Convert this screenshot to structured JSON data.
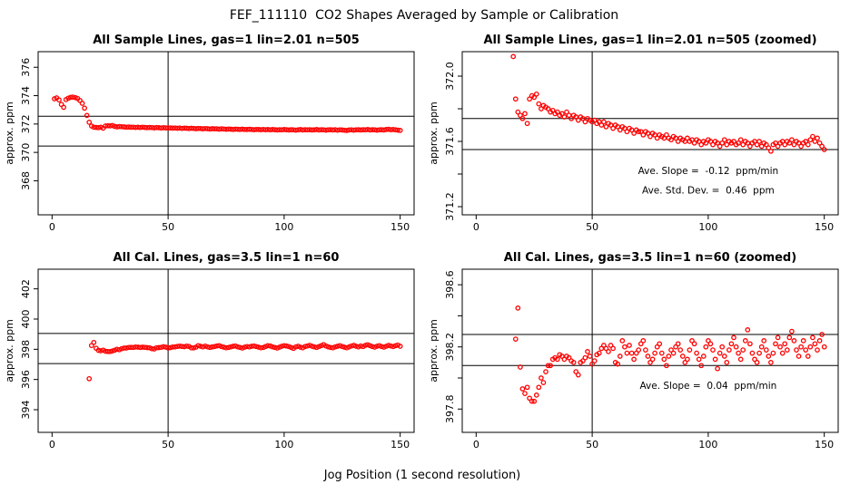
{
  "title": "FEF_111110  CO2 Shapes Averaged by Sample or Calibration",
  "xlabel": "Jog Position (1 second resolution)",
  "point_color": "#FF0000",
  "line_color": "#000000",
  "series": {
    "sample": {
      "x_start": 1,
      "y": [
        373.78,
        373.84,
        373.7,
        373.38,
        373.18,
        373.72,
        373.82,
        373.88,
        373.9,
        373.86,
        373.8,
        373.66,
        373.46,
        373.12,
        372.6,
        372.12,
        371.86,
        371.78,
        371.76,
        371.74,
        371.77,
        371.71,
        371.86,
        371.88,
        371.87,
        371.89,
        371.83,
        371.8,
        371.82,
        371.81,
        371.8,
        371.78,
        371.79,
        371.77,
        371.78,
        371.76,
        371.77,
        371.75,
        371.78,
        371.76,
        371.74,
        371.76,
        371.75,
        371.73,
        371.75,
        371.74,
        371.72,
        371.74,
        371.73,
        371.72,
        371.73,
        371.71,
        371.72,
        371.7,
        371.72,
        371.69,
        371.71,
        371.7,
        371.68,
        371.7,
        371.69,
        371.67,
        371.69,
        371.68,
        371.66,
        371.68,
        371.67,
        371.65,
        371.67,
        371.66,
        371.66,
        371.64,
        371.66,
        371.65,
        371.63,
        371.65,
        371.64,
        371.62,
        371.64,
        371.63,
        371.62,
        371.64,
        371.62,
        371.61,
        371.63,
        371.62,
        371.6,
        371.62,
        371.61,
        371.6,
        371.62,
        371.6,
        371.61,
        371.59,
        371.61,
        371.6,
        371.58,
        371.6,
        371.59,
        371.61,
        371.6,
        371.58,
        371.6,
        371.59,
        371.57,
        371.59,
        371.61,
        371.58,
        371.6,
        371.59,
        371.6,
        371.58,
        371.59,
        371.61,
        371.58,
        371.6,
        371.59,
        371.57,
        371.59,
        371.6,
        371.58,
        371.6,
        371.57,
        371.59,
        371.58,
        371.56,
        371.54,
        371.58,
        371.59,
        371.57,
        371.59,
        371.6,
        371.58,
        371.6,
        371.59,
        371.61,
        371.58,
        371.6,
        371.59,
        371.57,
        371.59,
        371.6,
        371.58,
        371.61,
        371.63,
        371.6,
        371.62,
        371.59,
        371.57,
        371.55
      ]
    },
    "cal": {
      "x_start": 16,
      "y": [
        396.05,
        398.25,
        398.45,
        398.07,
        397.93,
        397.9,
        397.94,
        397.87,
        397.85,
        397.85,
        397.89,
        397.94,
        398.0,
        397.97,
        398.04,
        398.08,
        398.08,
        398.12,
        398.13,
        398.12,
        398.15,
        398.14,
        398.12,
        398.14,
        398.13,
        398.11,
        398.1,
        398.04,
        398.02,
        398.1,
        398.11,
        398.13,
        398.17,
        398.14,
        398.09,
        398.11,
        398.15,
        398.16,
        398.19,
        398.21,
        398.19,
        398.17,
        398.21,
        398.19,
        398.1,
        398.09,
        398.14,
        398.24,
        398.2,
        398.16,
        398.21,
        398.16,
        398.12,
        398.16,
        398.18,
        398.22,
        398.24,
        398.18,
        398.14,
        398.1,
        398.12,
        398.16,
        398.2,
        398.22,
        398.16,
        398.12,
        398.08,
        398.14,
        398.18,
        398.16,
        398.2,
        398.22,
        398.18,
        398.14,
        398.1,
        398.12,
        398.18,
        398.24,
        398.22,
        398.16,
        398.12,
        398.08,
        398.14,
        398.2,
        398.24,
        398.22,
        398.18,
        398.12,
        398.06,
        398.16,
        398.2,
        398.14,
        398.1,
        398.18,
        398.22,
        398.26,
        398.2,
        398.16,
        398.12,
        398.18,
        398.24,
        398.31,
        398.22,
        398.16,
        398.12,
        398.1,
        398.16,
        398.2,
        398.24,
        398.18,
        398.14,
        398.1,
        398.16,
        398.22,
        398.26,
        398.2,
        398.16,
        398.22,
        398.18,
        398.26,
        398.3,
        398.24,
        398.18,
        398.14,
        398.2,
        398.24,
        398.18,
        398.14,
        398.2,
        398.26,
        398.22,
        398.18,
        398.24,
        398.28,
        398.2
      ]
    }
  },
  "chart_data": [
    {
      "type": "scatter",
      "title": "All Sample Lines, gas=1 lin=2.01 n=505",
      "ylabel": "approx. ppm",
      "series": "sample",
      "xlim": [
        -6,
        156
      ],
      "ylim": [
        365.6,
        377.1
      ],
      "xticks": [
        0,
        50,
        100,
        150
      ],
      "yticks": [
        {
          "v": 368,
          "label": "368"
        },
        {
          "v": 370,
          "label": "370"
        },
        {
          "v": 372,
          "label": "372"
        },
        {
          "v": 374,
          "label": "374"
        },
        {
          "v": 376,
          "label": "376"
        }
      ],
      "hlines": [
        372.55,
        370.45
      ],
      "vlines": [
        50
      ],
      "annotations": []
    },
    {
      "type": "scatter",
      "title": "All Sample Lines, gas=1 lin=2.01 n=505 (zoomed)",
      "ylabel": "approx. ppm",
      "series": "sample",
      "xlim": [
        -6,
        156
      ],
      "ylim": [
        371.15,
        372.15
      ],
      "xticks": [
        0,
        50,
        100,
        150
      ],
      "yticks": [
        {
          "v": 371.2,
          "label": "371.2"
        },
        {
          "v": 371.4,
          "label": ""
        },
        {
          "v": 371.6,
          "label": "371.6"
        },
        {
          "v": 371.8,
          "label": ""
        },
        {
          "v": 372.0,
          "label": "372.0"
        }
      ],
      "hlines": [
        371.74,
        371.55
      ],
      "vlines": [
        50
      ],
      "annotations": [
        {
          "x": 100,
          "y": 371.42,
          "text": "Ave. Slope =  -0.12  ppm/min"
        },
        {
          "x": 100,
          "y": 371.3,
          "text": "Ave. Std. Dev. =  0.46  ppm"
        }
      ]
    },
    {
      "type": "scatter",
      "title": "All Cal. Lines, gas=3.5 lin=1 n=60",
      "ylabel": "approx. ppm",
      "series": "cal",
      "xlim": [
        -6,
        156
      ],
      "ylim": [
        392.5,
        403.3
      ],
      "xticks": [
        0,
        50,
        100,
        150
      ],
      "yticks": [
        {
          "v": 394,
          "label": "394"
        },
        {
          "v": 396,
          "label": "396"
        },
        {
          "v": 398,
          "label": "398"
        },
        {
          "v": 400,
          "label": "400"
        },
        {
          "v": 402,
          "label": "402"
        }
      ],
      "hlines": [
        399.05,
        397.05
      ],
      "vlines": [
        50
      ],
      "annotations": []
    },
    {
      "type": "scatter",
      "title": "All Cal. Lines, gas=3.5 lin=1 n=60 (zoomed)",
      "ylabel": "approx. ppm",
      "series": "cal",
      "xlim": [
        -6,
        156
      ],
      "ylim": [
        397.65,
        398.7
      ],
      "xticks": [
        0,
        50,
        100,
        150
      ],
      "yticks": [
        {
          "v": 397.8,
          "label": "397.8"
        },
        {
          "v": 398.0,
          "label": ""
        },
        {
          "v": 398.2,
          "label": "398.2"
        },
        {
          "v": 398.4,
          "label": ""
        },
        {
          "v": 398.6,
          "label": "398.6"
        }
      ],
      "hlines": [
        398.28,
        398.08
      ],
      "vlines": [
        50
      ],
      "annotations": [
        {
          "x": 100,
          "y": 397.95,
          "text": "Ave. Slope =  0.04  ppm/min"
        }
      ]
    }
  ]
}
